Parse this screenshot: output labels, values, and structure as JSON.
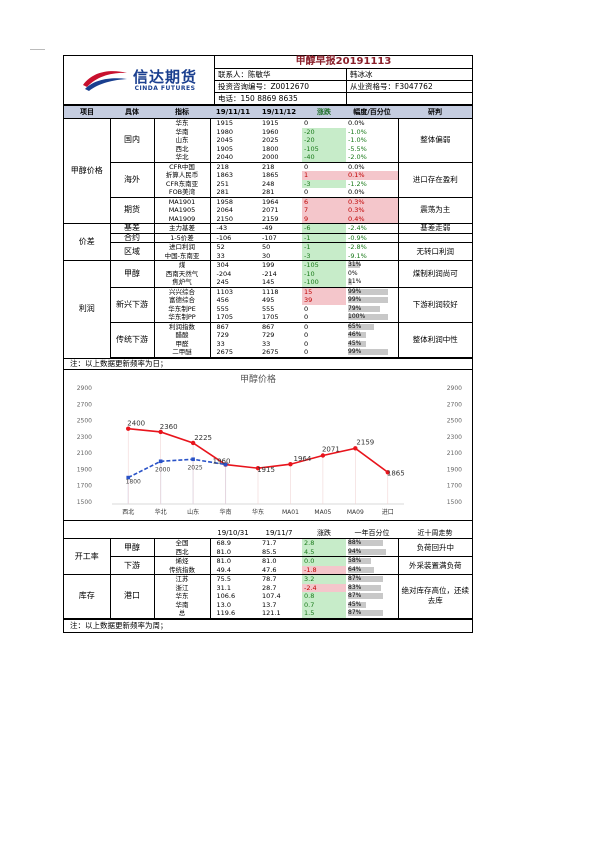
{
  "header": {
    "logo_cn": "信达期货",
    "logo_en": "CINDA FUTURES",
    "title": "甲醇早报20191113",
    "contact": "联系人：陈敏华",
    "co_author": "韩冰冰",
    "consult_no": "投资咨询编号：Z0012670",
    "license_no": "从业资格号：F3047762",
    "phone": "电话：150 8869 8635"
  },
  "table1": {
    "columns": [
      "项目",
      "具体",
      "指标",
      "19/11/11",
      "19/11/12",
      "涨跌",
      "幅度/百分位",
      "研判"
    ],
    "rows": [
      {
        "cat": "甲醇价格",
        "sub": "国内",
        "ind": "华东",
        "v1": "1915",
        "v2": "1915",
        "chg": "0",
        "pct": "0.0%",
        "dir": ""
      },
      {
        "cat": "",
        "sub": "",
        "ind": "华南",
        "v1": "1980",
        "v2": "1960",
        "chg": "-20",
        "pct": "-1.0%",
        "dir": "dn"
      },
      {
        "cat": "",
        "sub": "",
        "ind": "山东",
        "v1": "2045",
        "v2": "2025",
        "chg": "-20",
        "pct": "-1.0%",
        "dir": "dn"
      },
      {
        "cat": "",
        "sub": "",
        "ind": "西北",
        "v1": "1905",
        "v2": "1800",
        "chg": "-105",
        "pct": "-5.5%",
        "dir": "dn"
      },
      {
        "cat": "",
        "sub": "",
        "ind": "华北",
        "v1": "2040",
        "v2": "2000",
        "chg": "-40",
        "pct": "-2.0%",
        "dir": "dn"
      },
      {
        "cat": "",
        "sub": "海外",
        "ind": "CFR中国",
        "v1": "218",
        "v2": "218",
        "chg": "0",
        "pct": "0.0%",
        "dir": ""
      },
      {
        "cat": "",
        "sub": "",
        "ind": "折算人民币",
        "v1": "1863",
        "v2": "1865",
        "chg": "1",
        "pct": "0.1%",
        "dir": "up"
      },
      {
        "cat": "",
        "sub": "",
        "ind": "CFR东南亚",
        "v1": "251",
        "v2": "248",
        "chg": "-3",
        "pct": "-1.2%",
        "dir": "dn"
      },
      {
        "cat": "",
        "sub": "",
        "ind": "FOB美湾",
        "v1": "281",
        "v2": "281",
        "chg": "0",
        "pct": "0.0%",
        "dir": ""
      },
      {
        "cat": "",
        "sub": "期货",
        "ind": "MA1901",
        "v1": "1958",
        "v2": "1964",
        "chg": "6",
        "pct": "0.3%",
        "dir": "up"
      },
      {
        "cat": "",
        "sub": "",
        "ind": "MA1905",
        "v1": "2064",
        "v2": "2071",
        "chg": "7",
        "pct": "0.3%",
        "dir": "up"
      },
      {
        "cat": "",
        "sub": "",
        "ind": "MA1909",
        "v1": "2150",
        "v2": "2159",
        "chg": "9",
        "pct": "0.4%",
        "dir": "up"
      },
      {
        "cat": "价差",
        "sub": "基差",
        "ind": "主力基差",
        "v1": "-43",
        "v2": "-49",
        "chg": "-6",
        "pct": "-2.4%",
        "dir": "dn"
      },
      {
        "cat": "",
        "sub": "合约",
        "ind": "1-5价差",
        "v1": "-106",
        "v2": "-107",
        "chg": "-1",
        "pct": "-0.9%",
        "dir": "dn"
      },
      {
        "cat": "",
        "sub": "区域",
        "ind": "进口利润",
        "v1": "52",
        "v2": "50",
        "chg": "-1",
        "pct": "-2.8%",
        "dir": "dn"
      },
      {
        "cat": "",
        "sub": "",
        "ind": "中国-东南亚",
        "v1": "33",
        "v2": "30",
        "chg": "-3",
        "pct": "-9.1%",
        "dir": "dn"
      }
    ],
    "verdicts": {
      "domestic": "整体偏弱",
      "overseas": "进口存在盈利",
      "futures": "震荡为主",
      "basis": "基差走弱",
      "regional": "无转口利润"
    }
  },
  "table2": {
    "rows": [
      {
        "cat": "利润",
        "sub": "甲醇",
        "ind": "煤",
        "v1": "304",
        "v2": "199",
        "chg": "-105",
        "pct": "31%",
        "pv": 0.31,
        "dir": "dn"
      },
      {
        "cat": "",
        "sub": "",
        "ind": "西南天然气",
        "v1": "-204",
        "v2": "-214",
        "chg": "-10",
        "pct": "0%",
        "pv": 0.0,
        "dir": "dn"
      },
      {
        "cat": "",
        "sub": "",
        "ind": "焦炉气",
        "v1": "245",
        "v2": "145",
        "chg": "-100",
        "pct": "11%",
        "pv": 0.11,
        "dir": "dn"
      },
      {
        "cat": "",
        "sub": "新兴下游",
        "ind": "兴兴综合",
        "v1": "1103",
        "v2": "1118",
        "chg": "15",
        "pct": "99%",
        "pv": 0.99,
        "dir": "up"
      },
      {
        "cat": "",
        "sub": "",
        "ind": "富德综合",
        "v1": "456",
        "v2": "495",
        "chg": "39",
        "pct": "99%",
        "pv": 0.99,
        "dir": "up"
      },
      {
        "cat": "",
        "sub": "",
        "ind": "华东制PE",
        "v1": "555",
        "v2": "555",
        "chg": "0",
        "pct": "79%",
        "pv": 0.79,
        "dir": ""
      },
      {
        "cat": "",
        "sub": "",
        "ind": "华东制PP",
        "v1": "1705",
        "v2": "1705",
        "chg": "0",
        "pct": "100%",
        "pv": 1.0,
        "dir": ""
      },
      {
        "cat": "",
        "sub": "传统下游",
        "ind": "利润指数",
        "v1": "867",
        "v2": "867",
        "chg": "0",
        "pct": "65%",
        "pv": 0.65,
        "dir": ""
      },
      {
        "cat": "",
        "sub": "",
        "ind": "醋酸",
        "v1": "729",
        "v2": "729",
        "chg": "0",
        "pct": "46%",
        "pv": 0.46,
        "dir": ""
      },
      {
        "cat": "",
        "sub": "",
        "ind": "甲醛",
        "v1": "33",
        "v2": "33",
        "chg": "0",
        "pct": "45%",
        "pv": 0.45,
        "dir": ""
      },
      {
        "cat": "",
        "sub": "",
        "ind": "二甲醚",
        "v1": "2675",
        "v2": "2675",
        "chg": "0",
        "pct": "99%",
        "pv": 0.99,
        "dir": ""
      }
    ],
    "verdicts": {
      "methanol": "煤制利润尚可",
      "emerging": "下游利润较好",
      "traditional": "整体利润中性"
    },
    "note": "注：以上数据更新频率为日；"
  },
  "chart_data": {
    "type": "line",
    "title": "甲醇价格",
    "categories": [
      "西北",
      "华北",
      "山东",
      "华南",
      "华东",
      "MA01",
      "MA05",
      "MA09",
      "进口"
    ],
    "series": [
      {
        "values": [
          2400,
          2360,
          2225,
          1960,
          1915,
          1964,
          2071,
          2159,
          1865
        ],
        "color": "#e8141c",
        "style": "solid"
      },
      {
        "values": [
          1800,
          2000,
          2025,
          1960,
          null,
          null,
          null,
          null,
          null
        ],
        "color": "#2952c7",
        "style": "dashed"
      }
    ],
    "labels_red": [
      "2400",
      "2360",
      "2225",
      "1960",
      "1915",
      "1964",
      "2071",
      "2159",
      "1865"
    ],
    "labels_blue": [
      "1800",
      "2000",
      "2025"
    ],
    "ylim": [
      1500,
      2900
    ],
    "yticks": [
      "2900",
      "2700",
      "2500",
      "2300",
      "2100",
      "1900",
      "1700",
      "1500"
    ]
  },
  "table3": {
    "columns": [
      "19/10/31",
      "19/11/7",
      "涨跌",
      "一年百分位",
      "近十周走势"
    ],
    "rows": [
      {
        "cat": "开工率",
        "sub": "甲醇",
        "ind": "全国",
        "v1": "68.9",
        "v2": "71.7",
        "chg": "2.8",
        "pct": "88%",
        "pv": 0.88,
        "dir": "up"
      },
      {
        "cat": "",
        "sub": "",
        "ind": "西北",
        "v1": "81.0",
        "v2": "85.5",
        "chg": "4.5",
        "pct": "94%",
        "pv": 0.94,
        "dir": "up"
      },
      {
        "cat": "",
        "sub": "下游",
        "ind": "烯烃",
        "v1": "81.0",
        "v2": "81.0",
        "chg": "0.0",
        "pct": "58%",
        "pv": 0.58,
        "dir": "up"
      },
      {
        "cat": "",
        "sub": "",
        "ind": "传统指数",
        "v1": "49.4",
        "v2": "47.6",
        "chg": "-1.8",
        "pct": "64%",
        "pv": 0.64,
        "dir": "pdn"
      },
      {
        "cat": "库存",
        "sub": "港口",
        "ind": "江苏",
        "v1": "75.5",
        "v2": "78.7",
        "chg": "3.2",
        "pct": "87%",
        "pv": 0.87,
        "dir": "up"
      },
      {
        "cat": "",
        "sub": "",
        "ind": "浙江",
        "v1": "31.1",
        "v2": "28.7",
        "chg": "-2.4",
        "pct": "83%",
        "pv": 0.83,
        "dir": "pdn"
      },
      {
        "cat": "",
        "sub": "",
        "ind": "华东",
        "v1": "106.6",
        "v2": "107.4",
        "chg": "0.8",
        "pct": "87%",
        "pv": 0.87,
        "dir": "up"
      },
      {
        "cat": "",
        "sub": "",
        "ind": "华南",
        "v1": "13.0",
        "v2": "13.7",
        "chg": "0.7",
        "pct": "45%",
        "pv": 0.45,
        "dir": "up"
      },
      {
        "cat": "",
        "sub": "",
        "ind": "总",
        "v1": "119.6",
        "v2": "121.1",
        "chg": "1.5",
        "pct": "87%",
        "pv": 0.87,
        "dir": "up"
      }
    ],
    "verdicts": {
      "methanol": "负荷回升中",
      "downstream": "外采装置满负荷",
      "inventory": "绝对库存高位，还续去库"
    },
    "note": "注：以上数据更新频率为周；"
  }
}
